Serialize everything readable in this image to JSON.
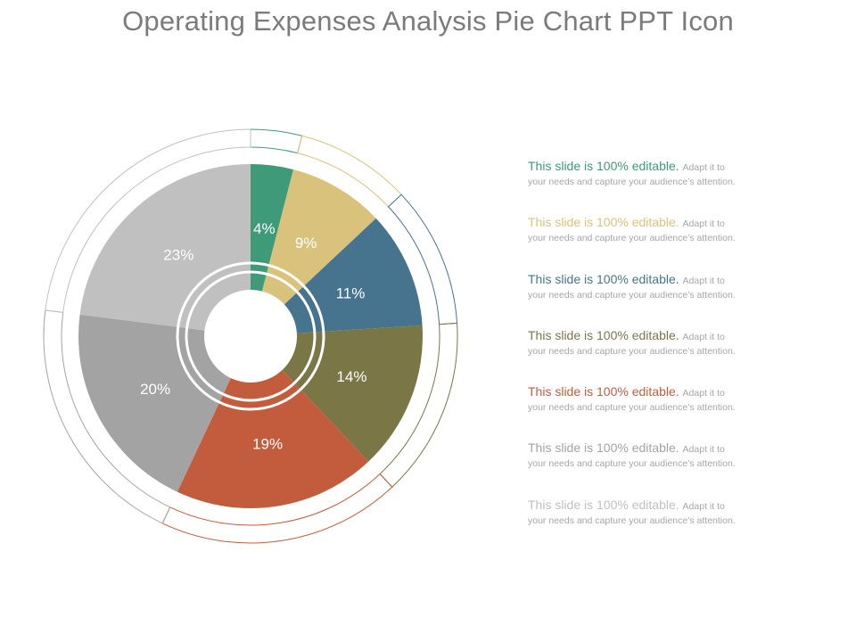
{
  "title": "Operating Expenses Analysis Pie Chart PPT Icon",
  "chart_data": {
    "type": "pie",
    "title": "Operating Expenses Analysis Pie Chart PPT Icon",
    "values": [
      4,
      9,
      11,
      14,
      19,
      20,
      23
    ],
    "labels": [
      "4%",
      "9%",
      "11%",
      "14%",
      "19%",
      "20%",
      "23%"
    ],
    "colors": [
      "#3f9a7a",
      "#d9c27b",
      "#46748e",
      "#7a7646",
      "#c35c3d",
      "#a3a3a3",
      "#c0c0c0"
    ],
    "legend_placement": "right"
  },
  "legend": {
    "items": [
      {
        "head": "This slide is 100% editable.",
        "sub": "Adapt it to",
        "body": "your needs and capture your audience’s attention.",
        "color": "#3f9a7a"
      },
      {
        "head": "This slide is 100% editable.",
        "sub": "Adapt it to",
        "body": "your needs and capture your audience’s attention.",
        "color": "#d9c27b"
      },
      {
        "head": "This slide is 100% editable.",
        "sub": "Adapt it to",
        "body": "your needs and capture your audience’s attention.",
        "color": "#46748e"
      },
      {
        "head": "This slide is 100% editable.",
        "sub": "Adapt it to",
        "body": "your needs and capture your audience’s attention.",
        "color": "#7a7646"
      },
      {
        "head": "This slide is 100% editable.",
        "sub": "Adapt it to",
        "body": "your needs and capture your audience’s attention.",
        "color": "#c35c3d"
      },
      {
        "head": "This slide is 100% editable.",
        "sub": "Adapt it to",
        "body": "your needs and capture your audience’s attention.",
        "color": "#a3a3a3"
      },
      {
        "head": "This slide is 100% editable.",
        "sub": "Adapt it to",
        "body": "your needs and capture your audience’s attention.",
        "color": "#c0c0c0"
      }
    ]
  }
}
